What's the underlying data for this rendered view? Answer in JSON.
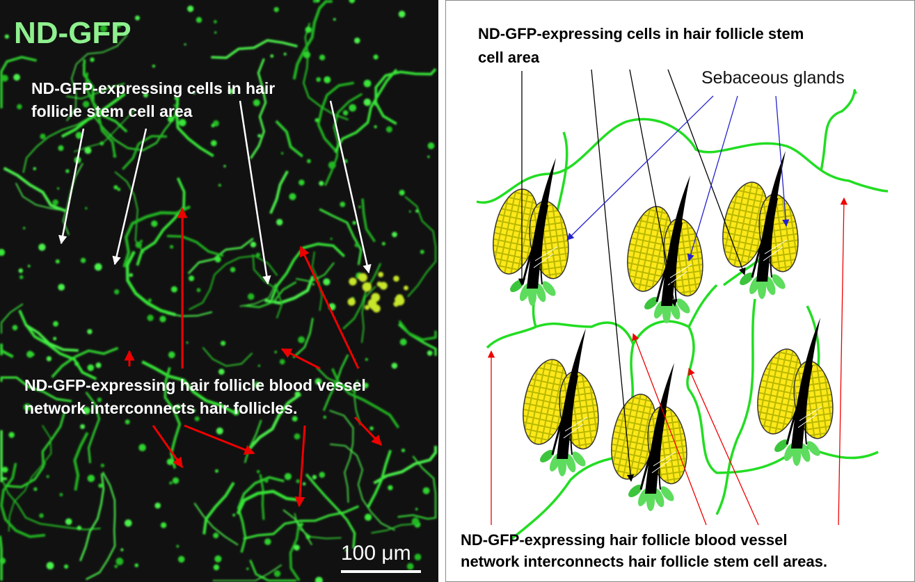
{
  "left": {
    "title": "ND-GFP",
    "stem_cells_label": [
      "ND-GFP-expressing cells in hair",
      "follicle stem cell area"
    ],
    "vessel_label": [
      "ND-GFP-expressing hair follicle blood vessel",
      "network interconnects hair follicles."
    ],
    "scale_bar": "100 μm"
  },
  "right": {
    "stem_cells_label": [
      "ND-GFP-expressing cells in hair follicle stem",
      "cell area"
    ],
    "glands_label": "Sebaceous glands",
    "vessel_label": [
      "ND-GFP-expressing hair follicle blood vessel",
      "network interconnects hair follicle stem cell areas."
    ]
  }
}
